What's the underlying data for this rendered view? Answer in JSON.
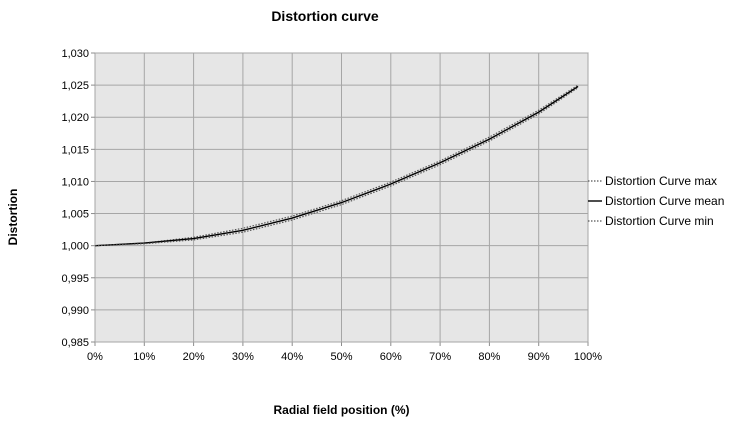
{
  "chart_data": {
    "type": "line",
    "title": "Distortion curve",
    "xlabel": "Radial field position (%)",
    "ylabel": "Distortion",
    "xlim": [
      0,
      100
    ],
    "ylim": [
      0.985,
      1.03
    ],
    "x_ticks": [
      0,
      10,
      20,
      30,
      40,
      50,
      60,
      70,
      80,
      90,
      100
    ],
    "x_tick_labels": [
      "0%",
      "10%",
      "20%",
      "30%",
      "40%",
      "50%",
      "60%",
      "70%",
      "80%",
      "90%",
      "100%"
    ],
    "y_ticks": [
      0.985,
      0.99,
      0.995,
      1.0,
      1.005,
      1.01,
      1.015,
      1.02,
      1.025,
      1.03
    ],
    "y_tick_labels": [
      "0,985",
      "0,990",
      "0,995",
      "1,000",
      "1,005",
      "1,010",
      "1,015",
      "1,020",
      "1,025",
      "1,030"
    ],
    "grid": true,
    "legend_position": "right",
    "x": [
      0,
      10,
      20,
      30,
      40,
      50,
      60,
      70,
      80,
      90,
      98
    ],
    "series": [
      {
        "name": "Distortion Curve max",
        "style": "dotted",
        "color": "#555555",
        "values": [
          1.0,
          1.0004,
          1.0013,
          1.0027,
          1.0046,
          1.007,
          1.0099,
          1.0132,
          1.0169,
          1.0211,
          1.025
        ]
      },
      {
        "name": "Distortion Curve mean",
        "style": "solid",
        "color": "#000000",
        "values": [
          1.0,
          1.0004,
          1.0011,
          1.0024,
          1.0043,
          1.0067,
          1.0096,
          1.0129,
          1.0166,
          1.0208,
          1.0248
        ]
      },
      {
        "name": "Distortion Curve min",
        "style": "dotted",
        "color": "#555555",
        "values": [
          1.0,
          1.0003,
          1.0009,
          1.0021,
          1.004,
          1.0064,
          1.0093,
          1.0126,
          1.0163,
          1.0205,
          1.0246
        ]
      }
    ]
  }
}
